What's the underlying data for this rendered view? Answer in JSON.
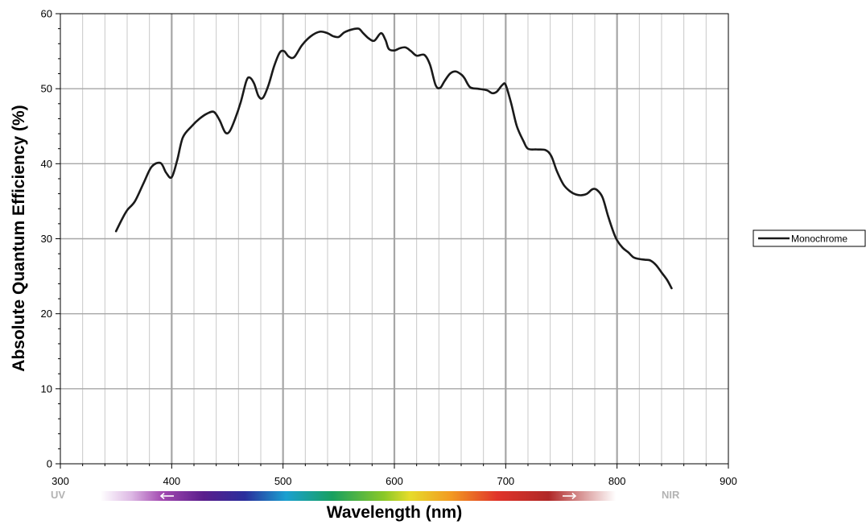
{
  "chart_data": {
    "type": "line",
    "xlabel": "Wavelength (nm)",
    "ylabel": "Absolute Quantum Efficiency (%)",
    "xlim": [
      300,
      900
    ],
    "ylim": [
      0,
      60
    ],
    "x_ticks": [
      300,
      400,
      500,
      600,
      700,
      800,
      900
    ],
    "y_ticks": [
      0,
      10,
      20,
      30,
      40,
      50,
      60
    ],
    "x_tick_labels": [
      "300",
      "400",
      "500",
      "600",
      "700",
      "800",
      "900"
    ],
    "y_tick_labels": [
      "0",
      "10",
      "20",
      "30",
      "40",
      "50",
      "60"
    ],
    "grid": true,
    "legend_position": "right",
    "spectrum_band": {
      "left_label": "UV",
      "right_label": "NIR"
    },
    "series": [
      {
        "name": "Monochrome",
        "color": "#1a1a1a",
        "points": [
          [
            350,
            31
          ],
          [
            355,
            32.5
          ],
          [
            360,
            33.8
          ],
          [
            367,
            35
          ],
          [
            375,
            37.5
          ],
          [
            382,
            39.6
          ],
          [
            390,
            40.1
          ],
          [
            395,
            38.8
          ],
          [
            400,
            38.2
          ],
          [
            405,
            40.5
          ],
          [
            410,
            43.5
          ],
          [
            418,
            45
          ],
          [
            425,
            46
          ],
          [
            432,
            46.7
          ],
          [
            438,
            46.9
          ],
          [
            443,
            45.8
          ],
          [
            448,
            44.2
          ],
          [
            452,
            44.3
          ],
          [
            457,
            46
          ],
          [
            462,
            48.2
          ],
          [
            467,
            51
          ],
          [
            470,
            51.5
          ],
          [
            474,
            50.7
          ],
          [
            478,
            49
          ],
          [
            482,
            48.8
          ],
          [
            487,
            50.5
          ],
          [
            492,
            53
          ],
          [
            497,
            54.8
          ],
          [
            501,
            55
          ],
          [
            505,
            54.3
          ],
          [
            510,
            54.2
          ],
          [
            517,
            55.8
          ],
          [
            525,
            57
          ],
          [
            533,
            57.6
          ],
          [
            540,
            57.4
          ],
          [
            545,
            57
          ],
          [
            550,
            56.9
          ],
          [
            555,
            57.5
          ],
          [
            562,
            57.9
          ],
          [
            568,
            58
          ],
          [
            572,
            57.4
          ],
          [
            577,
            56.7
          ],
          [
            582,
            56.4
          ],
          [
            588,
            57.4
          ],
          [
            592,
            56.5
          ],
          [
            595,
            55.3
          ],
          [
            600,
            55.1
          ],
          [
            605,
            55.4
          ],
          [
            610,
            55.5
          ],
          [
            615,
            55
          ],
          [
            620,
            54.4
          ],
          [
            627,
            54.5
          ],
          [
            632,
            53.2
          ],
          [
            637,
            50.5
          ],
          [
            641,
            50.1
          ],
          [
            645,
            51
          ],
          [
            650,
            52
          ],
          [
            655,
            52.3
          ],
          [
            660,
            51.9
          ],
          [
            663,
            51.4
          ],
          [
            668,
            50.2
          ],
          [
            675,
            50
          ],
          [
            683,
            49.8
          ],
          [
            688,
            49.4
          ],
          [
            692,
            49.6
          ],
          [
            697,
            50.5
          ],
          [
            700,
            50.5
          ],
          [
            705,
            48
          ],
          [
            710,
            45
          ],
          [
            716,
            43
          ],
          [
            720,
            42
          ],
          [
            728,
            41.9
          ],
          [
            736,
            41.8
          ],
          [
            741,
            41
          ],
          [
            746,
            39
          ],
          [
            752,
            37.2
          ],
          [
            758,
            36.3
          ],
          [
            763,
            35.9
          ],
          [
            768,
            35.8
          ],
          [
            773,
            36
          ],
          [
            778,
            36.6
          ],
          [
            782,
            36.5
          ],
          [
            787,
            35.5
          ],
          [
            792,
            33
          ],
          [
            797,
            30.8
          ],
          [
            800,
            29.8
          ],
          [
            805,
            28.8
          ],
          [
            810,
            28.2
          ],
          [
            815,
            27.5
          ],
          [
            820,
            27.3
          ],
          [
            825,
            27.2
          ],
          [
            830,
            27.1
          ],
          [
            835,
            26.5
          ],
          [
            840,
            25.5
          ],
          [
            845,
            24.5
          ],
          [
            849,
            23.4
          ]
        ]
      }
    ]
  }
}
